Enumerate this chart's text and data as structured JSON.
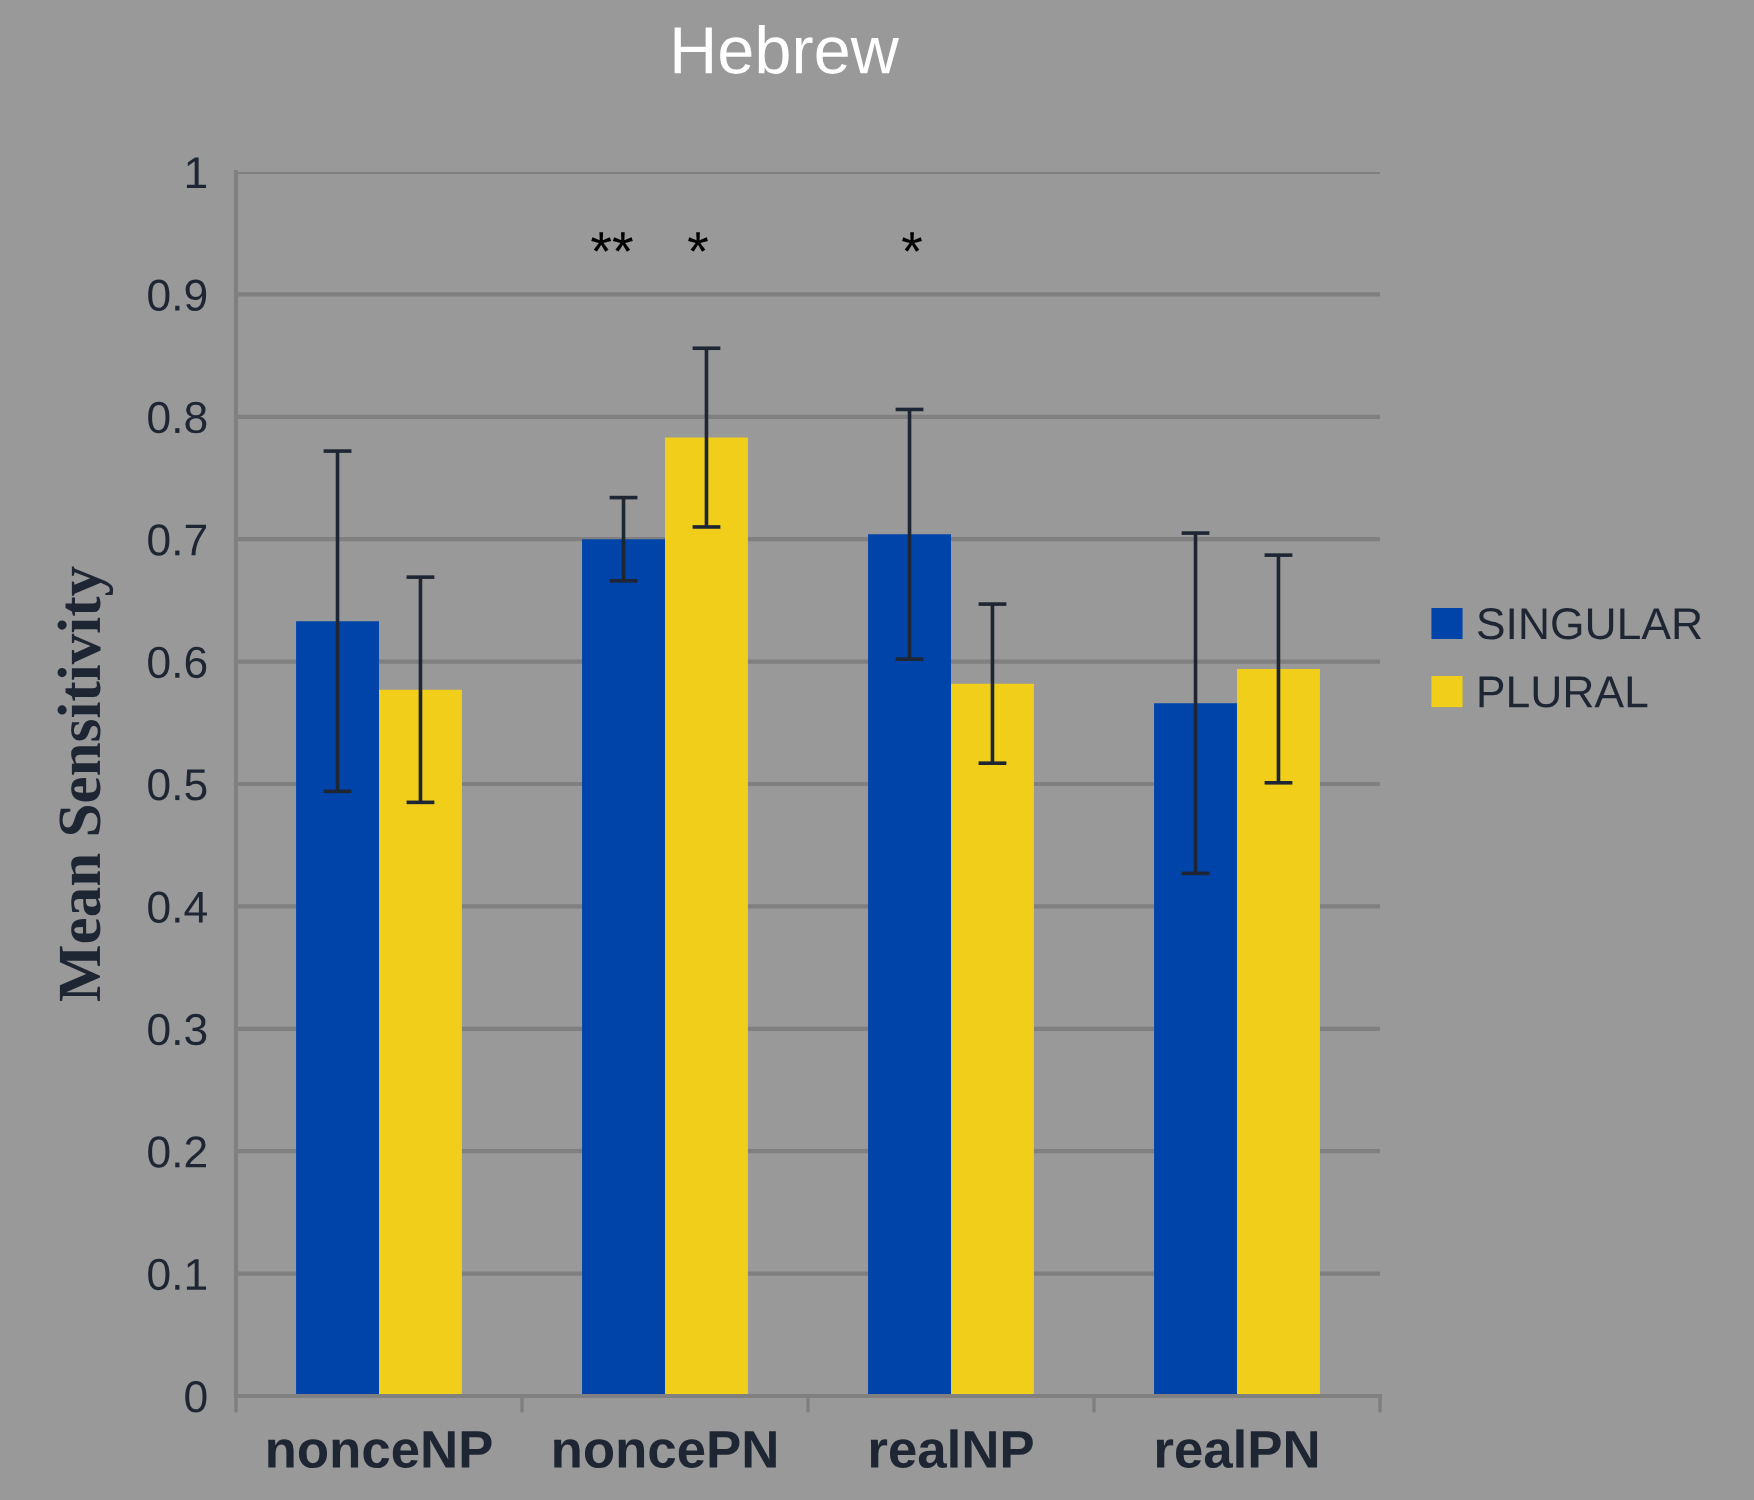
{
  "chart_data": {
    "type": "bar",
    "title": "Hebrew",
    "ylabel": "Mean Sensitivity",
    "categories": [
      "nonceNP",
      "noncePN",
      "realNP",
      "realPN"
    ],
    "series": [
      {
        "name": "SINGULAR",
        "color": "#0044aa",
        "values": [
          0.633,
          0.7,
          0.704,
          0.566
        ],
        "errors": [
          0.139,
          0.034,
          0.102,
          0.139
        ]
      },
      {
        "name": "PLURAL",
        "color": "#f0ce1a",
        "values": [
          0.577,
          0.783,
          0.582,
          0.594
        ],
        "errors": [
          0.092,
          0.073,
          0.065,
          0.093
        ]
      }
    ],
    "annotations": [
      "**",
      "*",
      "*"
    ],
    "ylim": [
      0,
      1
    ],
    "yticks": [
      0,
      0.1,
      0.2,
      0.3,
      0.4,
      0.5,
      0.6,
      0.7,
      0.8,
      0.9,
      1
    ],
    "grid": "y",
    "legend": "right"
  }
}
